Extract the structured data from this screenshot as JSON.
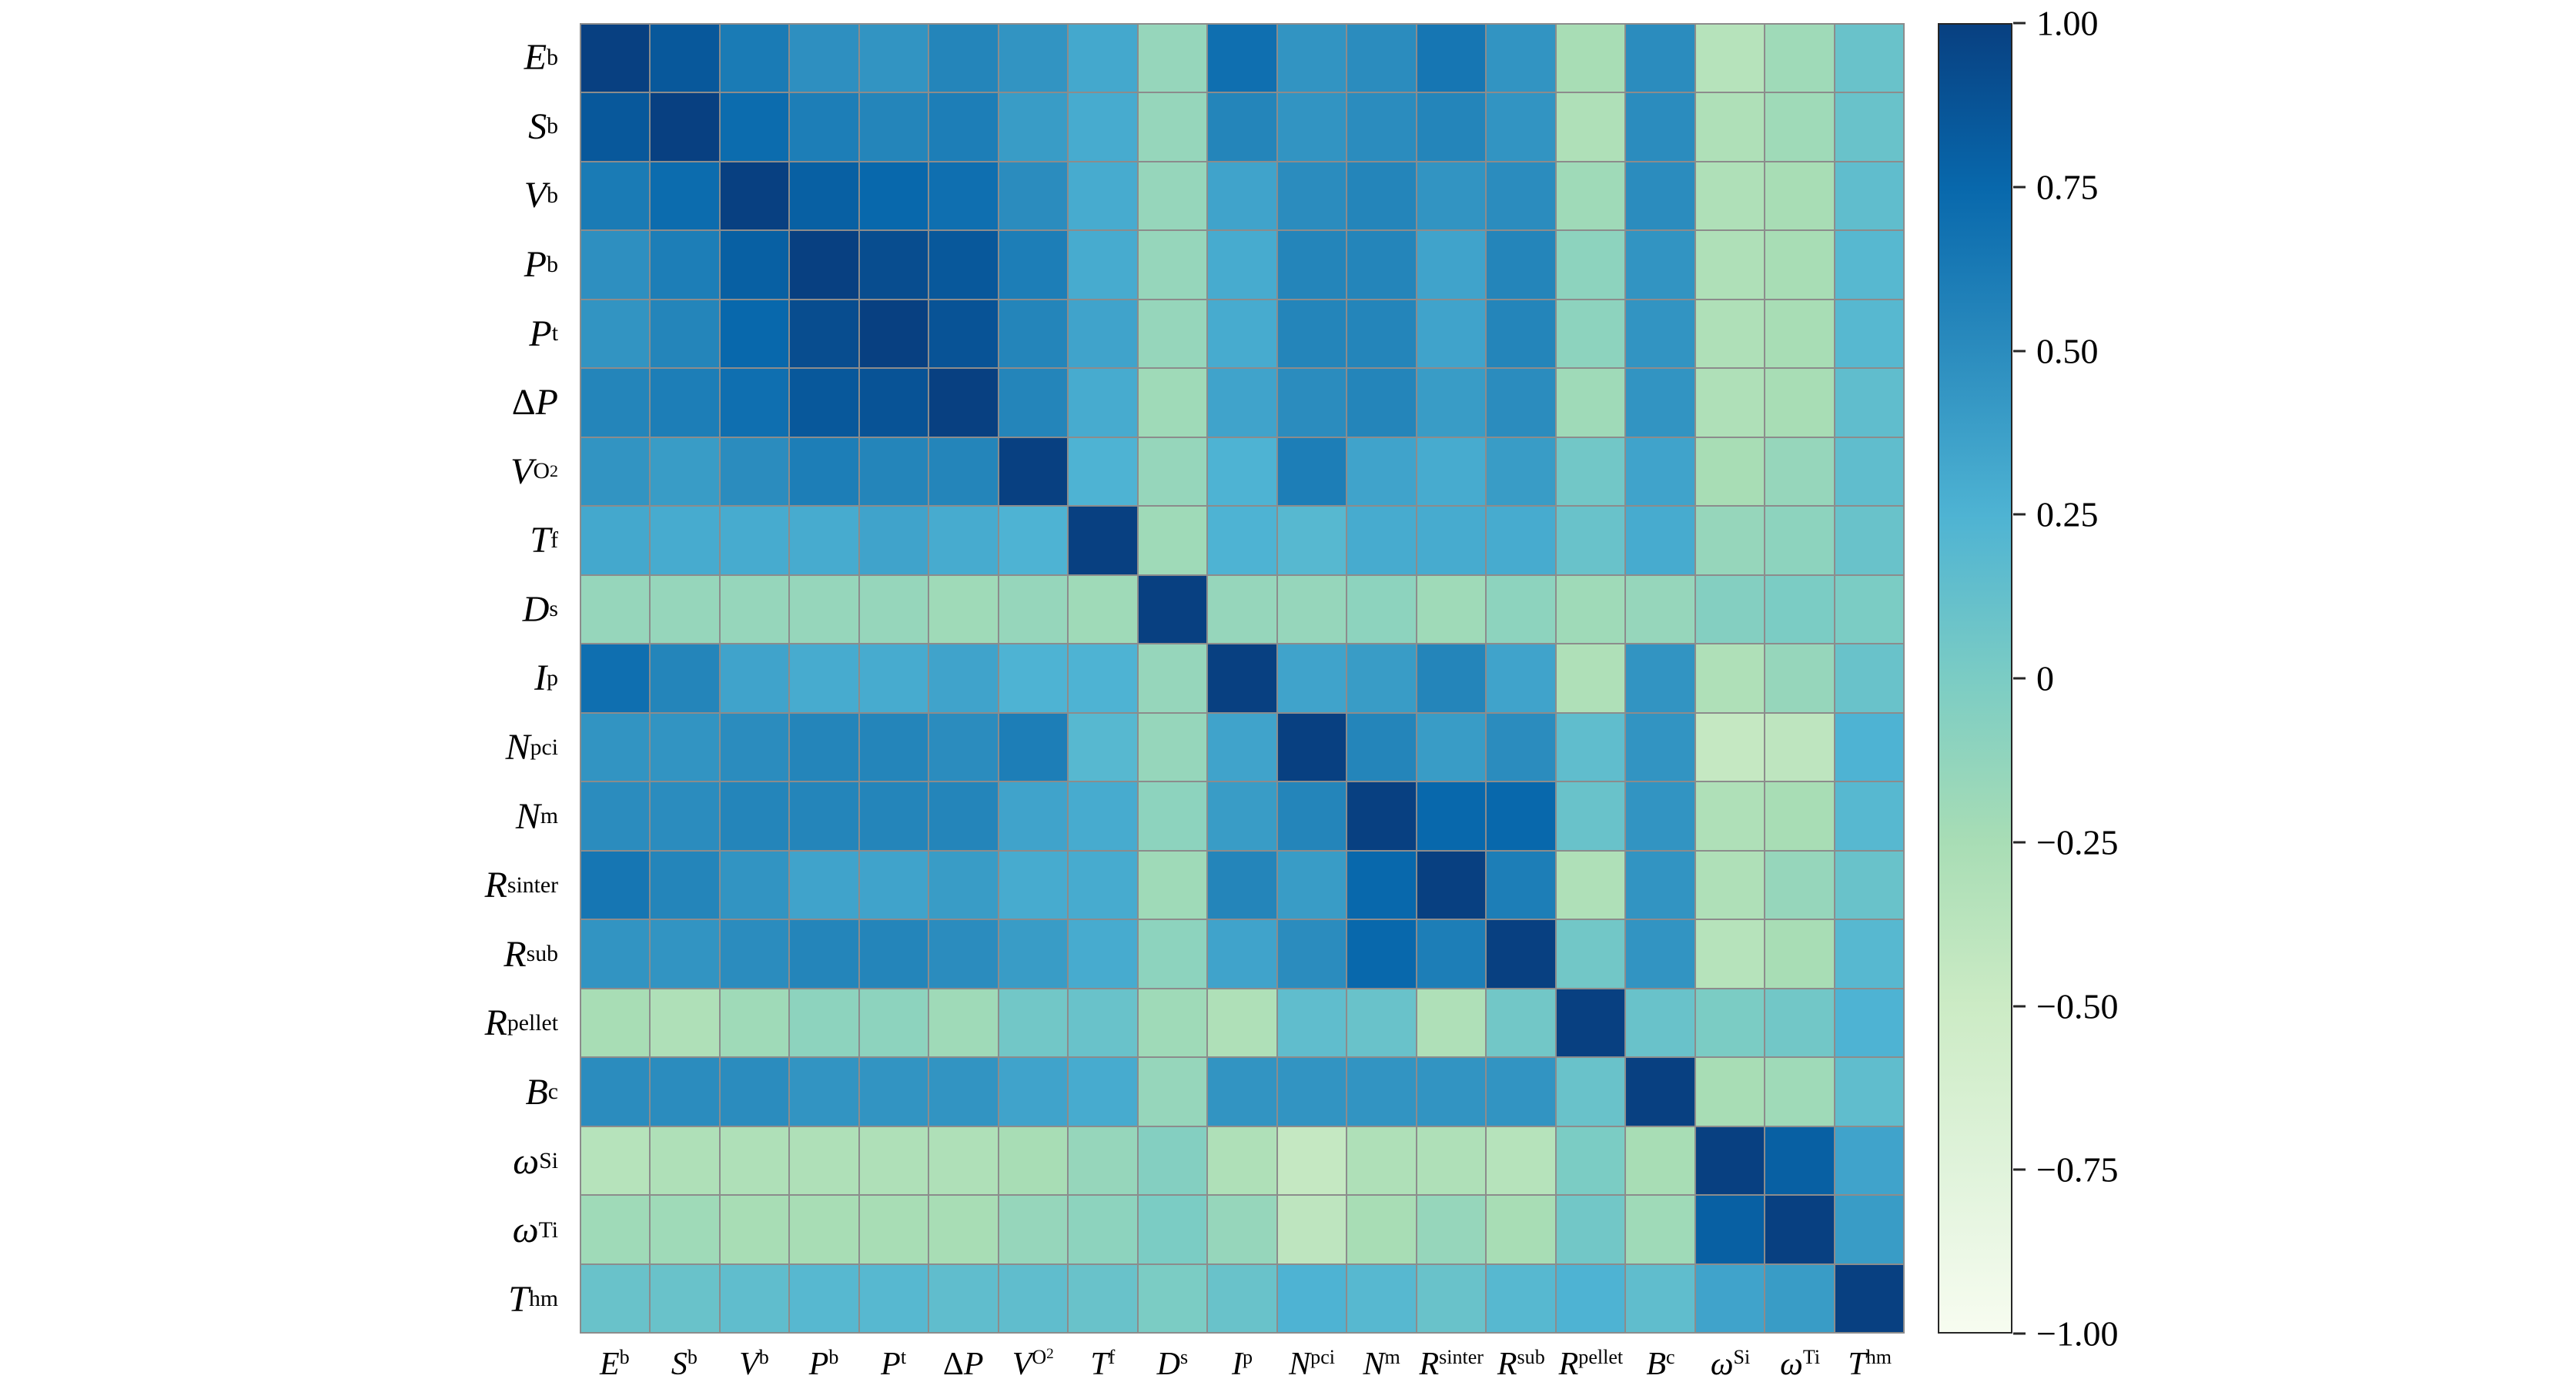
{
  "figure": {
    "background": "#ffffff",
    "grid_line_color": "#8c8c8c",
    "axis_outline_color": "#262626"
  },
  "chart_data": {
    "type": "heatmap",
    "title": "",
    "xlabel": "",
    "ylabel": "",
    "variables": [
      "E_b",
      "S_b",
      "V_b",
      "P_b",
      "P_t",
      "ΔP",
      "V_O2",
      "T_f",
      "D_s",
      "I_p",
      "N_pci",
      "N_m",
      "R_sinter",
      "R_sub",
      "R_pellet",
      "B_c",
      "ω_Si",
      "ω_Ti",
      "T_hm"
    ],
    "labels": [
      [
        {
          "text": "E",
          "style": "italic"
        },
        {
          "text": "b",
          "style": "sub"
        }
      ],
      [
        {
          "text": "S",
          "style": "italic"
        },
        {
          "text": "b",
          "style": "sub"
        }
      ],
      [
        {
          "text": "V",
          "style": "italic"
        },
        {
          "text": "b",
          "style": "sub"
        }
      ],
      [
        {
          "text": "P",
          "style": "italic"
        },
        {
          "text": "b",
          "style": "sub"
        }
      ],
      [
        {
          "text": "P",
          "style": "italic"
        },
        {
          "text": "t",
          "style": "sub"
        }
      ],
      [
        {
          "text": "Δ",
          "style": "normal"
        },
        {
          "text": "P",
          "style": "italic"
        }
      ],
      [
        {
          "text": "V",
          "style": "italic"
        },
        {
          "text": "O",
          "style": "sub"
        },
        {
          "text": "2",
          "style": "subsub"
        }
      ],
      [
        {
          "text": "T",
          "style": "italic"
        },
        {
          "text": "f",
          "style": "sub"
        }
      ],
      [
        {
          "text": "D",
          "style": "italic"
        },
        {
          "text": "s",
          "style": "sub"
        }
      ],
      [
        {
          "text": "I",
          "style": "italic"
        },
        {
          "text": "p",
          "style": "sub"
        }
      ],
      [
        {
          "text": "N",
          "style": "italic"
        },
        {
          "text": "pci",
          "style": "sub"
        }
      ],
      [
        {
          "text": "N",
          "style": "italic"
        },
        {
          "text": "m",
          "style": "sub"
        }
      ],
      [
        {
          "text": "R",
          "style": "italic"
        },
        {
          "text": "sinter",
          "style": "sub"
        }
      ],
      [
        {
          "text": "R",
          "style": "italic"
        },
        {
          "text": "sub",
          "style": "sub"
        }
      ],
      [
        {
          "text": "R",
          "style": "italic"
        },
        {
          "text": "pellet",
          "style": "sub"
        }
      ],
      [
        {
          "text": "B",
          "style": "italic"
        },
        {
          "text": "c",
          "style": "sub"
        }
      ],
      [
        {
          "text": "ω",
          "style": "italic"
        },
        {
          "text": "Si",
          "style": "sub"
        }
      ],
      [
        {
          "text": "ω",
          "style": "italic"
        },
        {
          "text": "Ti",
          "style": "sub"
        }
      ],
      [
        {
          "text": "T",
          "style": "italic"
        },
        {
          "text": "hm",
          "style": "sub"
        }
      ]
    ],
    "value_range": [
      -1,
      1
    ],
    "matrix": [
      [
        1.0,
        0.85,
        0.62,
        0.48,
        0.45,
        0.55,
        0.45,
        0.32,
        -0.15,
        0.7,
        0.45,
        0.5,
        0.65,
        0.45,
        -0.25,
        0.5,
        -0.35,
        -0.2,
        0.1
      ],
      [
        0.85,
        1.0,
        0.72,
        0.6,
        0.55,
        0.6,
        0.4,
        0.3,
        -0.15,
        0.55,
        0.45,
        0.5,
        0.55,
        0.45,
        -0.3,
        0.5,
        -0.3,
        -0.2,
        0.1
      ],
      [
        0.62,
        0.72,
        1.0,
        0.8,
        0.75,
        0.7,
        0.5,
        0.3,
        -0.15,
        0.35,
        0.5,
        0.55,
        0.45,
        0.5,
        -0.2,
        0.5,
        -0.3,
        -0.25,
        0.15
      ],
      [
        0.48,
        0.6,
        0.8,
        1.0,
        0.92,
        0.85,
        0.6,
        0.3,
        -0.15,
        0.3,
        0.55,
        0.55,
        0.35,
        0.55,
        -0.1,
        0.45,
        -0.3,
        -0.25,
        0.2
      ],
      [
        0.45,
        0.55,
        0.75,
        0.92,
        1.0,
        0.88,
        0.55,
        0.35,
        -0.15,
        0.3,
        0.55,
        0.55,
        0.35,
        0.55,
        -0.1,
        0.45,
        -0.3,
        -0.25,
        0.2
      ],
      [
        0.55,
        0.6,
        0.7,
        0.85,
        0.88,
        1.0,
        0.55,
        0.3,
        -0.2,
        0.35,
        0.5,
        0.55,
        0.4,
        0.5,
        -0.2,
        0.45,
        -0.3,
        -0.25,
        0.15
      ],
      [
        0.45,
        0.4,
        0.5,
        0.6,
        0.55,
        0.55,
        1.0,
        0.25,
        -0.15,
        0.25,
        0.6,
        0.35,
        0.3,
        0.4,
        0.05,
        0.35,
        -0.25,
        -0.15,
        0.15
      ],
      [
        0.32,
        0.3,
        0.3,
        0.3,
        0.35,
        0.3,
        0.25,
        1.0,
        -0.2,
        0.25,
        0.2,
        0.3,
        0.3,
        0.3,
        0.1,
        0.3,
        -0.15,
        -0.1,
        0.1
      ],
      [
        -0.15,
        -0.15,
        -0.15,
        -0.15,
        -0.15,
        -0.2,
        -0.15,
        -0.2,
        1.0,
        -0.15,
        -0.15,
        -0.1,
        -0.2,
        -0.1,
        -0.2,
        -0.15,
        -0.05,
        0.0,
        0.0
      ],
      [
        0.7,
        0.55,
        0.35,
        0.3,
        0.3,
        0.35,
        0.25,
        0.25,
        -0.15,
        1.0,
        0.35,
        0.4,
        0.55,
        0.35,
        -0.3,
        0.45,
        -0.3,
        -0.15,
        0.1
      ],
      [
        0.45,
        0.45,
        0.5,
        0.55,
        0.55,
        0.5,
        0.6,
        0.2,
        -0.15,
        0.35,
        1.0,
        0.55,
        0.4,
        0.5,
        0.15,
        0.45,
        -0.45,
        -0.4,
        0.25
      ],
      [
        0.5,
        0.5,
        0.55,
        0.55,
        0.55,
        0.55,
        0.35,
        0.3,
        -0.1,
        0.4,
        0.55,
        1.0,
        0.75,
        0.75,
        0.1,
        0.45,
        -0.3,
        -0.25,
        0.2
      ],
      [
        0.65,
        0.55,
        0.45,
        0.35,
        0.35,
        0.4,
        0.3,
        0.3,
        -0.2,
        0.55,
        0.4,
        0.75,
        1.0,
        0.6,
        -0.3,
        0.45,
        -0.3,
        -0.15,
        0.1
      ],
      [
        0.45,
        0.45,
        0.5,
        0.55,
        0.55,
        0.5,
        0.4,
        0.3,
        -0.1,
        0.35,
        0.5,
        0.75,
        0.6,
        1.0,
        0.05,
        0.45,
        -0.35,
        -0.25,
        0.2
      ],
      [
        -0.25,
        -0.3,
        -0.2,
        -0.1,
        -0.1,
        -0.2,
        0.05,
        0.1,
        -0.2,
        -0.3,
        0.15,
        0.1,
        -0.3,
        0.05,
        1.0,
        0.1,
        0.0,
        0.05,
        0.25
      ],
      [
        0.5,
        0.5,
        0.5,
        0.45,
        0.45,
        0.45,
        0.35,
        0.3,
        -0.15,
        0.45,
        0.45,
        0.45,
        0.45,
        0.45,
        0.1,
        1.0,
        -0.25,
        -0.2,
        0.15
      ],
      [
        -0.35,
        -0.3,
        -0.3,
        -0.3,
        -0.3,
        -0.3,
        -0.25,
        -0.15,
        -0.05,
        -0.3,
        -0.45,
        -0.3,
        -0.3,
        -0.35,
        0.0,
        -0.25,
        1.0,
        0.8,
        0.35
      ],
      [
        -0.2,
        -0.2,
        -0.25,
        -0.25,
        -0.25,
        -0.25,
        -0.15,
        -0.1,
        0.0,
        -0.15,
        -0.4,
        -0.25,
        -0.15,
        -0.25,
        0.05,
        -0.2,
        0.8,
        1.0,
        0.4
      ],
      [
        0.1,
        0.1,
        0.15,
        0.2,
        0.2,
        0.15,
        0.15,
        0.1,
        0.0,
        0.1,
        0.25,
        0.2,
        0.1,
        0.2,
        0.25,
        0.15,
        0.35,
        0.4,
        1.0
      ]
    ],
    "colormap": {
      "name": "green-blue (GnBu-like)",
      "stops": [
        [
          -1.0,
          "#f7fcf0"
        ],
        [
          -0.75,
          "#e0f3db"
        ],
        [
          -0.5,
          "#ccebc5"
        ],
        [
          -0.25,
          "#a8ddb5"
        ],
        [
          0.0,
          "#7bccc4"
        ],
        [
          0.25,
          "#4eb3d3"
        ],
        [
          0.5,
          "#2b8cbe"
        ],
        [
          0.75,
          "#0868ac"
        ],
        [
          1.0,
          "#084081"
        ]
      ]
    },
    "colorbar": {
      "position": "right",
      "min": -1,
      "max": 1,
      "ticks": [
        {
          "label": "1.00",
          "value": 1.0
        },
        {
          "label": "0.75",
          "value": 0.75
        },
        {
          "label": "0.50",
          "value": 0.5
        },
        {
          "label": "0.25",
          "value": 0.25
        },
        {
          "label": "0",
          "value": 0.0
        },
        {
          "label": "−0.25",
          "value": -0.25
        },
        {
          "label": "−0.50",
          "value": -0.5
        },
        {
          "label": "−0.75",
          "value": -0.75
        },
        {
          "label": "−1.00",
          "value": -1.0
        }
      ]
    },
    "grid": true,
    "legend_position": "none"
  }
}
